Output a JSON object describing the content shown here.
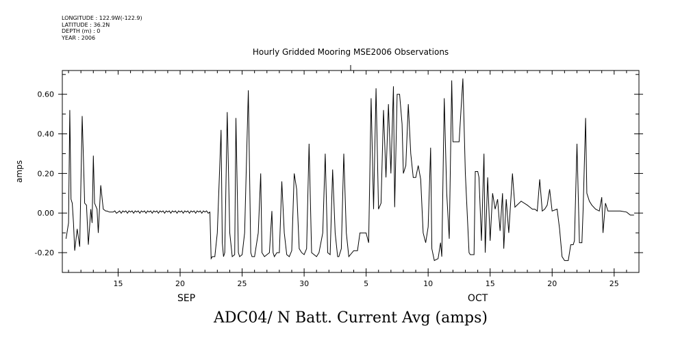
{
  "meta": {
    "longitude": "LONGITUDE : 122.9W(-122.9)",
    "latitude": "LATITUDE : 36.2N",
    "depth": "DEPTH (m) : 0",
    "year": "YEAR : 2006"
  },
  "footer": "ADC04/ N Batt. Current Avg (amps)",
  "chart_data": {
    "type": "line",
    "title": "Hourly Gridded Mooring MSE2006 Observations",
    "ylabel": "amps",
    "xlabel": "",
    "ylim": [
      -0.3,
      0.72
    ],
    "yticks": [
      -0.2,
      0.0,
      0.2,
      0.4,
      0.6
    ],
    "ytick_labels": [
      "-0.20",
      "0.00",
      "0.20",
      "0.40",
      "0.60"
    ],
    "x_unit": "days since Sep 1, 2006",
    "xlim": [
      10.5,
      57.0
    ],
    "x_major_ticks": [
      15,
      20,
      25,
      30,
      35,
      40,
      45,
      50,
      55
    ],
    "x_major_labels": [
      "15",
      "20",
      "25",
      "30",
      "5",
      "10",
      "15",
      "20",
      "25"
    ],
    "month_labels": [
      {
        "label": "SEP",
        "x": 20.5
      },
      {
        "label": "OCT",
        "x": 44.0
      }
    ],
    "series": [
      {
        "name": "N Batt. Current Avg",
        "color": "#000000",
        "x": [
          10.8,
          11.0,
          11.1,
          11.2,
          11.3,
          11.4,
          11.5,
          11.7,
          11.9,
          12.1,
          12.2,
          12.3,
          12.45,
          12.6,
          12.8,
          12.9,
          13.0,
          13.1,
          13.3,
          13.4,
          13.6,
          13.8,
          14.0,
          14.1,
          14.3,
          14.6,
          15.0,
          15.5,
          16.0,
          16.5,
          17.0,
          17.5,
          18.0,
          18.5,
          19.0,
          19.5,
          20.0,
          20.5,
          21.0,
          21.5,
          22.0,
          22.4,
          22.5,
          22.6,
          22.8,
          23.0,
          23.3,
          23.4,
          23.5,
          23.6,
          23.8,
          24.0,
          24.2,
          24.4,
          24.5,
          24.7,
          24.8,
          25.0,
          25.2,
          25.5,
          25.7,
          25.8,
          26.0,
          26.3,
          26.5,
          26.6,
          26.8,
          27.0,
          27.2,
          27.4,
          27.5,
          27.6,
          27.8,
          28.0,
          28.2,
          28.4,
          28.6,
          28.8,
          29.0,
          29.2,
          29.4,
          29.6,
          29.8,
          30.0,
          30.2,
          30.4,
          30.6,
          30.8,
          31.0,
          31.2,
          31.5,
          31.7,
          31.9,
          32.1,
          32.3,
          32.5,
          32.7,
          32.8,
          33.0,
          33.2,
          33.4,
          33.6,
          34.0,
          34.3,
          34.5,
          34.8,
          35.0,
          35.2,
          35.4,
          35.6,
          35.8,
          36.0,
          36.2,
          36.4,
          36.6,
          36.8,
          37.0,
          37.2,
          37.3,
          37.5,
          37.7,
          37.9,
          38.0,
          38.2,
          38.4,
          38.6,
          38.8,
          39.0,
          39.2,
          39.4,
          39.6,
          39.8,
          40.0,
          40.2,
          40.3,
          40.5,
          40.8,
          41.0,
          41.1,
          41.3,
          41.5,
          41.7,
          41.9,
          42.0,
          42.2,
          42.5,
          42.8,
          43.0,
          43.3,
          43.4,
          43.5,
          43.7,
          43.8,
          44.0,
          44.1,
          44.3,
          44.5,
          44.6,
          44.8,
          45.0,
          45.2,
          45.4,
          45.6,
          45.8,
          46.0,
          46.1,
          46.3,
          46.5,
          46.8,
          47.0,
          47.5,
          48.0,
          48.2,
          48.4,
          48.6,
          48.8,
          49.0,
          49.2,
          49.4,
          49.6,
          49.8,
          50.0,
          50.4,
          50.6,
          50.8,
          51.0,
          51.3,
          51.5,
          51.7,
          51.8,
          52.0,
          52.2,
          52.4,
          52.5,
          52.7,
          52.8,
          53.0,
          53.2,
          53.5,
          53.8,
          54.0,
          54.1,
          54.3,
          54.5,
          55.0,
          55.5,
          56.0,
          56.3,
          56.6
        ],
        "values": [
          -0.13,
          -0.05,
          0.52,
          0.07,
          0.05,
          -0.05,
          -0.19,
          -0.08,
          -0.17,
          0.49,
          0.28,
          0.05,
          0.04,
          -0.16,
          0.02,
          -0.05,
          0.29,
          0.05,
          0.02,
          -0.1,
          0.14,
          0.02,
          0.01,
          0.01,
          0.005,
          0.005,
          0.005,
          0.005,
          0.005,
          0.005,
          0.005,
          0.005,
          0.005,
          0.005,
          0.005,
          0.005,
          0.005,
          0.005,
          0.005,
          0.005,
          0.005,
          0.005,
          -0.23,
          -0.22,
          -0.22,
          -0.1,
          0.42,
          -0.15,
          -0.22,
          -0.2,
          0.51,
          -0.1,
          -0.22,
          -0.21,
          0.48,
          -0.2,
          -0.22,
          -0.21,
          -0.1,
          0.62,
          -0.2,
          -0.22,
          -0.22,
          -0.1,
          0.2,
          -0.2,
          -0.22,
          -0.21,
          -0.2,
          0.01,
          -0.2,
          -0.22,
          -0.2,
          -0.2,
          0.16,
          -0.1,
          -0.21,
          -0.22,
          -0.19,
          0.2,
          0.12,
          -0.18,
          -0.2,
          -0.21,
          -0.18,
          0.35,
          -0.2,
          -0.21,
          -0.22,
          -0.2,
          -0.1,
          0.3,
          -0.2,
          -0.21,
          0.22,
          -0.1,
          -0.22,
          -0.22,
          -0.18,
          0.3,
          -0.1,
          -0.22,
          -0.19,
          -0.19,
          -0.1,
          -0.1,
          -0.1,
          -0.15,
          0.58,
          0.02,
          0.63,
          0.02,
          0.05,
          0.52,
          0.18,
          0.55,
          0.2,
          0.64,
          0.03,
          0.6,
          0.6,
          0.45,
          0.2,
          0.24,
          0.55,
          0.3,
          0.18,
          0.18,
          0.24,
          0.17,
          -0.1,
          -0.15,
          -0.07,
          0.33,
          -0.18,
          -0.24,
          -0.23,
          -0.15,
          -0.22,
          0.58,
          0.1,
          -0.13,
          0.67,
          0.36,
          0.36,
          0.36,
          0.68,
          0.2,
          -0.2,
          -0.21,
          -0.21,
          -0.21,
          0.21,
          0.21,
          0.18,
          -0.14,
          0.3,
          -0.2,
          0.18,
          -0.14,
          0.1,
          0.02,
          0.07,
          -0.09,
          0.1,
          -0.18,
          0.07,
          -0.1,
          0.2,
          0.03,
          0.06,
          0.04,
          0.03,
          0.02,
          0.02,
          0.01,
          0.17,
          0.01,
          0.02,
          0.04,
          0.12,
          0.01,
          0.02,
          -0.08,
          -0.22,
          -0.24,
          -0.24,
          -0.16,
          -0.16,
          -0.14,
          0.35,
          -0.15,
          -0.15,
          0.02,
          0.48,
          0.1,
          0.06,
          0.04,
          0.02,
          0.01,
          0.08,
          -0.1,
          0.05,
          0.01,
          0.01,
          0.01,
          0.005,
          -0.01,
          -0.01
        ]
      }
    ]
  }
}
